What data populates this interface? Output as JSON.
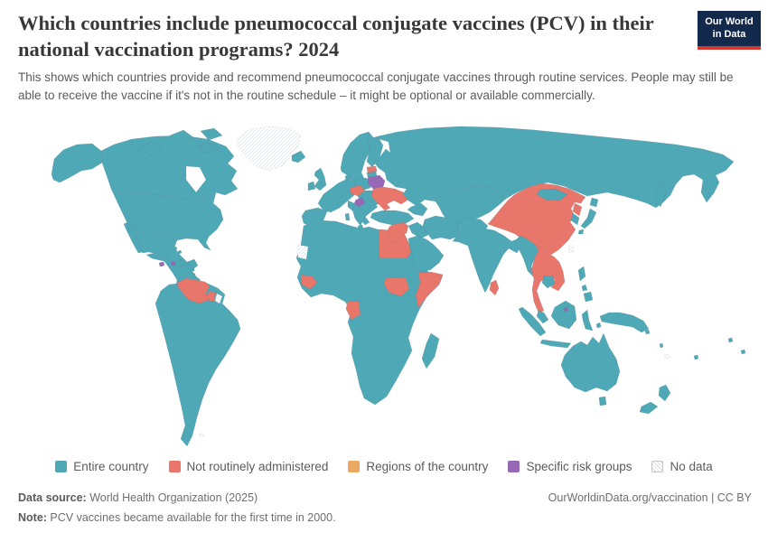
{
  "header": {
    "title": "Which countries include pneumococcal conjugate vaccines (PCV) in their national vaccination programs? 2024",
    "subtitle": "This shows which countries provide and recommend pneumococcal conjugate vaccines through routine services. People may still be able to receive the vaccine if it's not in the routine schedule – it might be optional or available commercially."
  },
  "logo": {
    "line1": "Our World",
    "line2": "in Data"
  },
  "colors": {
    "entire": "#4ea8b5",
    "not_routine": "#e8766b",
    "regions": "#eba862",
    "risk": "#9768b6",
    "logo_bg": "#12294c",
    "logo_stripe": "#d3372e"
  },
  "legend": {
    "items": [
      {
        "id": "entire",
        "label": "Entire country",
        "color": "#4ea8b5"
      },
      {
        "id": "not_routine",
        "label": "Not routinely administered",
        "color": "#e8766b"
      },
      {
        "id": "regions",
        "label": "Regions of the country",
        "color": "#eba862"
      },
      {
        "id": "risk",
        "label": "Specific risk groups",
        "color": "#9768b6"
      },
      {
        "id": "no_data",
        "label": "No data",
        "pattern": "hatch"
      }
    ]
  },
  "footer": {
    "datasource_label": "Data source:",
    "datasource_text": " World Health Organization (2025)",
    "attribution": "OurWorldinData.org/vaccination | CC BY",
    "note_label": "Note:",
    "note_text": " PCV vaccines became available for the first time in 2000."
  },
  "chart_data": {
    "type": "choropleth_world_map",
    "title": "Which countries include pneumococcal conjugate vaccines (PCV) in their national vaccination programs?",
    "year": 2024,
    "legend_position": "bottom",
    "categories": [
      {
        "label": "Entire country",
        "color": "#4ea8b5",
        "countries_visible": [
          "United States",
          "Canada",
          "Mexico",
          "Brazil",
          "Argentina",
          "Colombia",
          "Peru",
          "Chile",
          "Guyana",
          "Cuba",
          "Dominican Republic",
          "United Kingdom",
          "Ireland",
          "France",
          "Spain",
          "Portugal",
          "Germany",
          "Italy",
          "Norway",
          "Sweden",
          "Finland",
          "Denmark",
          "Poland",
          "Turkey",
          "Russia",
          "Kazakhstan",
          "Iran",
          "Iraq",
          "Saudi Arabia",
          "Pakistan",
          "Afghanistan",
          "India",
          "Mongolia",
          "South Korea",
          "Japan",
          "Myanmar",
          "Cambodia",
          "Malaysia",
          "Indonesia",
          "Philippines",
          "Papua New Guinea",
          "Australia",
          "New Zealand",
          "Morocco",
          "Algeria",
          "Libya",
          "Sudan",
          "Ethiopia",
          "Kenya",
          "Nigeria",
          "DR Congo",
          "South Africa",
          "Madagascar"
        ]
      },
      {
        "label": "Not routinely administered",
        "color": "#e8766b",
        "countries_visible": [
          "China",
          "Vietnam",
          "Laos",
          "Thailand",
          "North Korea",
          "Sri Lanka",
          "Ukraine",
          "Estonia",
          "Austria",
          "Czechia",
          "Syria",
          "Jordan",
          "Egypt",
          "Venezuela",
          "Suriname",
          "Guinea",
          "Gabon",
          "South Sudan",
          "Somalia"
        ]
      },
      {
        "label": "Regions of the country",
        "color": "#eba862",
        "countries_visible": []
      },
      {
        "label": "Specific risk groups",
        "color": "#9768b6",
        "countries_visible": [
          "Belarus",
          "Bosnia and Herzegovina",
          "Jamaica",
          "Haiti",
          "Brunei"
        ]
      },
      {
        "label": "No data",
        "pattern": "diagonal-hatch",
        "countries_visible": [
          "Greenland",
          "Western Sahara",
          "French Guiana",
          "Taiwan",
          "New Caledonia",
          "Falkland Islands"
        ]
      }
    ]
  }
}
